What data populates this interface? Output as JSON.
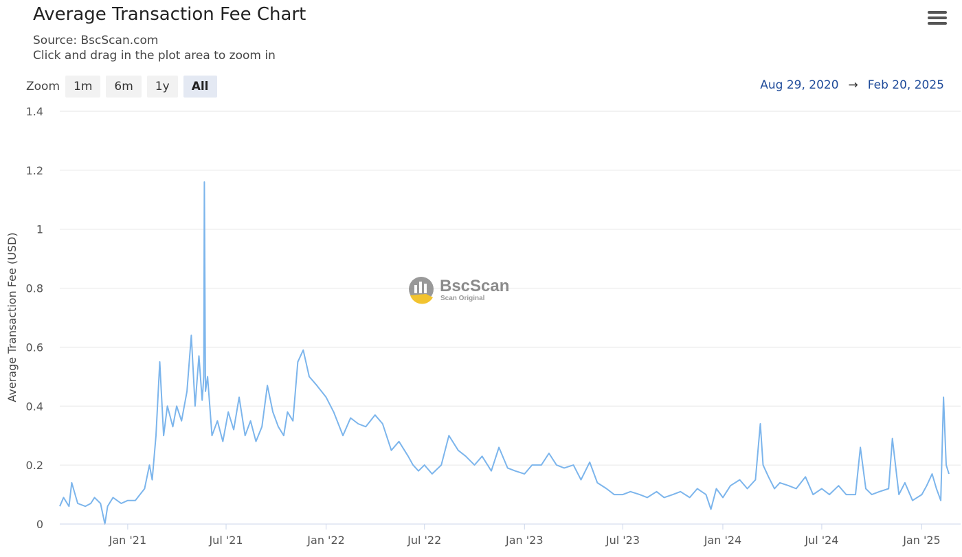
{
  "header": {
    "title": "Average Transaction Fee Chart",
    "source": "Source: BscScan.com",
    "hint": "Click and drag in the plot area to zoom in"
  },
  "menu_icon": "hamburger-menu-icon",
  "zoom": {
    "label": "Zoom",
    "buttons": [
      "1m",
      "6m",
      "1y",
      "All"
    ],
    "active": "All"
  },
  "range": {
    "from": "Aug 29, 2020",
    "arrow": "→",
    "to": "Feb 20, 2025"
  },
  "watermark": {
    "name": "BscScan",
    "tagline": "Scan Original"
  },
  "colors": {
    "line": "#7cb5ec",
    "grid": "#e6e6e6",
    "range_text": "#1f4b9a"
  },
  "chart_data": {
    "type": "line",
    "title": "Average Transaction Fee Chart",
    "ylabel": "Average Transaction Fee (USD)",
    "xlabel": "",
    "ylim": [
      0,
      1.4
    ],
    "yticks": [
      0,
      0.2,
      0.4,
      0.6,
      0.8,
      1,
      1.2,
      1.4
    ],
    "ytick_labels": [
      "0",
      "0.2",
      "0.4",
      "0.6",
      "0.8",
      "1",
      "1.2",
      "1.4"
    ],
    "xlim": [
      "2020-08-29",
      "2025-02-20"
    ],
    "xticks": [
      "2021-01-01",
      "2021-07-01",
      "2022-01-01",
      "2022-07-01",
      "2023-01-01",
      "2023-07-01",
      "2024-01-01",
      "2024-07-01",
      "2025-01-01"
    ],
    "xtick_labels": [
      "Jan '21",
      "Jul '21",
      "Jan '22",
      "Jul '22",
      "Jan '23",
      "Jul '23",
      "Jan '24",
      "Jul '24",
      "Jan '25"
    ],
    "grid": true,
    "legend": "none",
    "series": [
      {
        "x": [
          "2020-08-29",
          "2020-09-05",
          "2020-09-15",
          "2020-09-20",
          "2020-10-01",
          "2020-10-15",
          "2020-10-25",
          "2020-11-01",
          "2020-11-12",
          "2020-11-20",
          "2020-11-25",
          "2020-12-05",
          "2020-12-20",
          "2021-01-01",
          "2021-01-15",
          "2021-02-01",
          "2021-02-10",
          "2021-02-15",
          "2021-02-22",
          "2021-03-01",
          "2021-03-08",
          "2021-03-15",
          "2021-03-25",
          "2021-04-01",
          "2021-04-10",
          "2021-04-20",
          "2021-04-28",
          "2021-05-05",
          "2021-05-12",
          "2021-05-18",
          "2021-05-21",
          "2021-05-22",
          "2021-05-24",
          "2021-05-28",
          "2021-06-05",
          "2021-06-15",
          "2021-06-25",
          "2021-07-05",
          "2021-07-15",
          "2021-07-25",
          "2021-08-05",
          "2021-08-15",
          "2021-08-25",
          "2021-09-05",
          "2021-09-15",
          "2021-09-25",
          "2021-10-05",
          "2021-10-15",
          "2021-10-22",
          "2021-11-01",
          "2021-11-10",
          "2021-11-20",
          "2021-12-01",
          "2021-12-15",
          "2022-01-01",
          "2022-01-15",
          "2022-02-01",
          "2022-02-15",
          "2022-03-01",
          "2022-03-15",
          "2022-04-01",
          "2022-04-15",
          "2022-05-01",
          "2022-05-15",
          "2022-06-01",
          "2022-06-10",
          "2022-06-20",
          "2022-07-01",
          "2022-07-15",
          "2022-08-01",
          "2022-08-15",
          "2022-09-01",
          "2022-09-15",
          "2022-10-01",
          "2022-10-15",
          "2022-11-01",
          "2022-11-15",
          "2022-12-01",
          "2022-12-15",
          "2023-01-01",
          "2023-01-15",
          "2023-02-01",
          "2023-02-15",
          "2023-03-01",
          "2023-03-15",
          "2023-04-01",
          "2023-04-15",
          "2023-05-01",
          "2023-05-15",
          "2023-06-01",
          "2023-06-15",
          "2023-07-01",
          "2023-07-15",
          "2023-08-01",
          "2023-08-15",
          "2023-09-01",
          "2023-09-15",
          "2023-10-01",
          "2023-10-15",
          "2023-11-01",
          "2023-11-15",
          "2023-12-01",
          "2023-12-10",
          "2023-12-20",
          "2024-01-01",
          "2024-01-15",
          "2024-02-01",
          "2024-02-15",
          "2024-03-01",
          "2024-03-10",
          "2024-03-15",
          "2024-03-25",
          "2024-04-05",
          "2024-04-15",
          "2024-05-01",
          "2024-05-15",
          "2024-06-01",
          "2024-06-15",
          "2024-07-01",
          "2024-07-15",
          "2024-08-01",
          "2024-08-15",
          "2024-09-01",
          "2024-09-10",
          "2024-09-20",
          "2024-10-01",
          "2024-10-15",
          "2024-11-01",
          "2024-11-08",
          "2024-11-20",
          "2024-12-01",
          "2024-12-15",
          "2025-01-01",
          "2025-01-10",
          "2025-01-20",
          "2025-01-28",
          "2025-02-01",
          "2025-02-05",
          "2025-02-10",
          "2025-02-15",
          "2025-02-20"
        ],
        "y": [
          0.06,
          0.09,
          0.06,
          0.14,
          0.07,
          0.06,
          0.07,
          0.09,
          0.07,
          0.0,
          0.06,
          0.09,
          0.07,
          0.08,
          0.08,
          0.12,
          0.2,
          0.15,
          0.3,
          0.55,
          0.3,
          0.4,
          0.33,
          0.4,
          0.35,
          0.45,
          0.64,
          0.4,
          0.57,
          0.42,
          0.5,
          1.16,
          0.45,
          0.5,
          0.3,
          0.35,
          0.28,
          0.38,
          0.32,
          0.43,
          0.3,
          0.35,
          0.28,
          0.33,
          0.47,
          0.38,
          0.33,
          0.3,
          0.38,
          0.35,
          0.55,
          0.59,
          0.5,
          0.47,
          0.43,
          0.38,
          0.3,
          0.36,
          0.34,
          0.33,
          0.37,
          0.34,
          0.25,
          0.28,
          0.23,
          0.2,
          0.18,
          0.2,
          0.17,
          0.2,
          0.3,
          0.25,
          0.23,
          0.2,
          0.23,
          0.18,
          0.26,
          0.19,
          0.18,
          0.17,
          0.2,
          0.2,
          0.24,
          0.2,
          0.19,
          0.2,
          0.15,
          0.21,
          0.14,
          0.12,
          0.1,
          0.1,
          0.11,
          0.1,
          0.09,
          0.11,
          0.09,
          0.1,
          0.11,
          0.09,
          0.12,
          0.1,
          0.05,
          0.12,
          0.09,
          0.13,
          0.15,
          0.12,
          0.15,
          0.34,
          0.2,
          0.16,
          0.12,
          0.14,
          0.13,
          0.12,
          0.16,
          0.1,
          0.12,
          0.1,
          0.13,
          0.1,
          0.1,
          0.26,
          0.12,
          0.1,
          0.11,
          0.12,
          0.29,
          0.1,
          0.14,
          0.08,
          0.1,
          0.13,
          0.17,
          0.12,
          0.1,
          0.08,
          0.43,
          0.2,
          0.17
        ]
      }
    ]
  }
}
